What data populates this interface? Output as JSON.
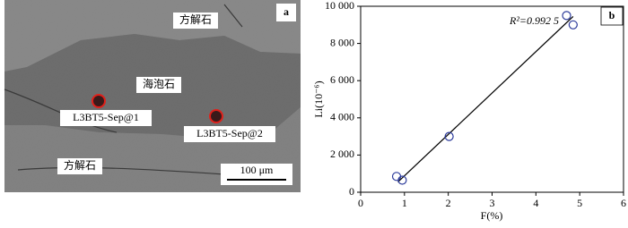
{
  "panel_a": {
    "panel_label": "a",
    "labels": [
      "方解石",
      "海泡石",
      "方解石"
    ],
    "spots": [
      "L3BT5-Sep@1",
      "L3BT5-Sep@2"
    ],
    "scale_bar": "100 μm"
  },
  "chart_data": {
    "type": "scatter",
    "panel_label": "b",
    "annotation": "R²=0.992 5",
    "x_label": "F(%)",
    "y_label": "Li(10⁻⁶)",
    "x": [
      0.82,
      0.95,
      2.02,
      4.7,
      4.85
    ],
    "values": [
      850,
      650,
      3000,
      9500,
      9000
    ],
    "color": "#2b3a9a",
    "trend_line": {
      "x": [
        0.85,
        4.85
      ],
      "values": [
        550,
        9450
      ]
    },
    "xlim": [
      0,
      6
    ],
    "xticks": [
      0,
      1,
      2,
      3,
      4,
      5,
      6
    ],
    "ylim": [
      0,
      10000
    ],
    "yticks": [
      0,
      {
        "value": 2000,
        "label": "2 000"
      },
      {
        "value": 4000,
        "label": "4 000"
      },
      {
        "value": 6000,
        "label": "6 000"
      },
      {
        "value": 8000,
        "label": "8 000"
      },
      {
        "value": 10000,
        "label": "10 000"
      }
    ]
  }
}
